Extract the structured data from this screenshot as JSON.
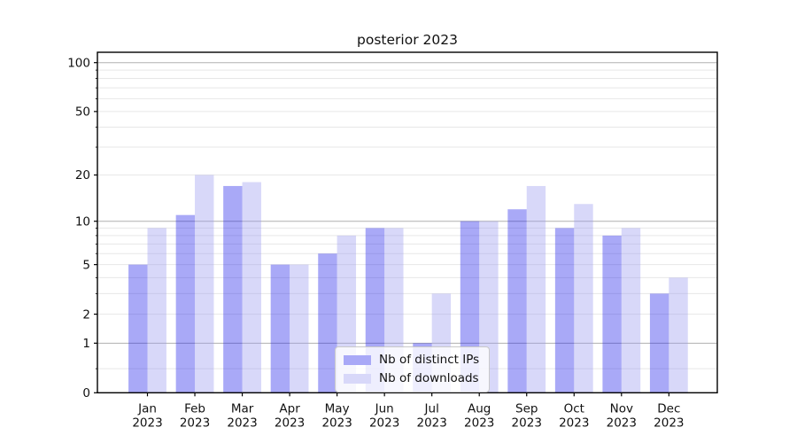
{
  "chart_data": {
    "type": "bar",
    "title": "posterior 2023",
    "categories": [
      "Jan 2023",
      "Feb 2023",
      "Mar 2023",
      "Apr 2023",
      "May 2023",
      "Jun 2023",
      "Jul 2023",
      "Aug 2023",
      "Sep 2023",
      "Oct 2023",
      "Nov 2023",
      "Dec 2023"
    ],
    "series": [
      {
        "name": "Nb of distinct IPs",
        "values": [
          5,
          11,
          17,
          5,
          6,
          9,
          1,
          10,
          12,
          9,
          8,
          3
        ],
        "fill": "rgba(29,29,234,0.38)",
        "legend_color": "#a9a9f7"
      },
      {
        "name": "Nb of downloads",
        "values": [
          9,
          20,
          18,
          5,
          8,
          9,
          3,
          10,
          17,
          13,
          9,
          4
        ],
        "fill": "rgba(152,152,239,0.38)",
        "legend_color": "#d8d8f9"
      }
    ],
    "xlabel": "",
    "ylabel": "",
    "yscale": "log1p",
    "ylim": [
      0,
      117
    ],
    "yticks": [
      0,
      1,
      2,
      5,
      10,
      20,
      50,
      100
    ],
    "major_grid_yticks": [
      1,
      10,
      100
    ],
    "minor_grid_yticks": [
      0.4,
      2,
      3,
      4,
      5,
      6,
      7,
      8,
      9,
      20,
      30,
      40,
      50,
      60,
      70,
      80,
      90
    ],
    "grid": true,
    "legend_position": "lower center",
    "colors": {
      "major_grid": "#b0b0b0",
      "minor_grid": "#e7e7e7",
      "axis": "#000000",
      "text": "#111111"
    }
  }
}
